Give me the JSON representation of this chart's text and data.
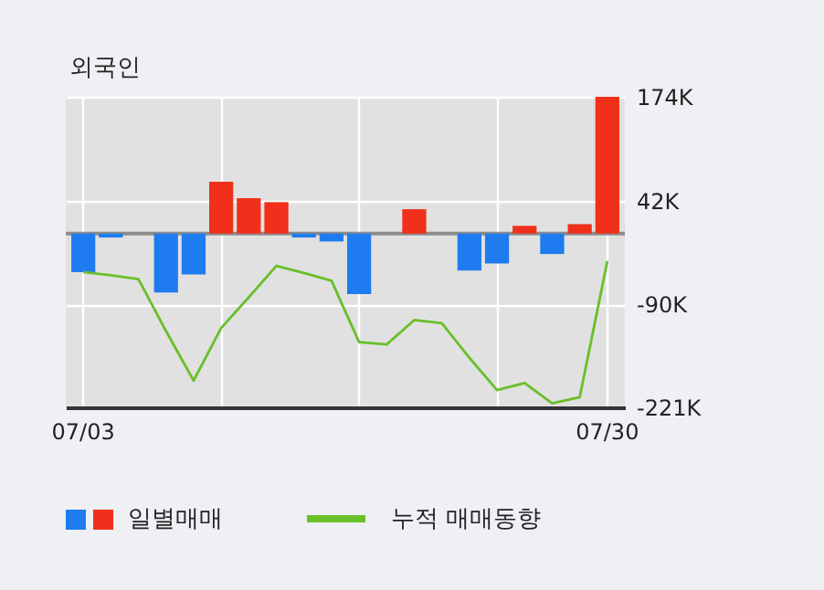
{
  "chart_data": {
    "type": "bar",
    "title": "외국인",
    "categories": [
      "07/03",
      null,
      null,
      null,
      null,
      null,
      null,
      null,
      null,
      null,
      null,
      null,
      null,
      null,
      null,
      null,
      null,
      null,
      null,
      "07/30"
    ],
    "series": [
      {
        "name": "일별매매",
        "colors": [
          "#1e7cf0",
          "#1e7cf0",
          "#1e7cf0",
          "#1e7cf0",
          "#1e7cf0",
          "#f0301a",
          "#f0301a",
          "#f0301a",
          "#1e7cf0",
          "#1e7cf0",
          "#1e7cf0",
          "#1e7cf0",
          "#f0301a",
          "#1e7cf0",
          "#1e7cf0",
          "#1e7cf0",
          "#f0301a",
          "#1e7cf0",
          "#f0301a",
          "#f0301a"
        ],
        "values": [
          -49,
          -5,
          0,
          -75,
          -52,
          66,
          45,
          40,
          -5,
          -10,
          -77,
          0,
          31,
          0,
          -47,
          -38,
          10,
          -26,
          12,
          174
        ]
      },
      {
        "name": "누적 매매동향",
        "type": "line",
        "color": "#6abf2a",
        "values": [
          -49,
          -53,
          -58,
          -124,
          -187,
          -120,
          -81,
          -41,
          -50,
          -60,
          -138,
          -141,
          -110,
          -114,
          -158,
          -199,
          -190,
          -216,
          -208,
          -35
        ]
      }
    ],
    "ylim": [
      -221,
      174
    ],
    "yticks": [
      {
        "value": 174,
        "label": "174K"
      },
      {
        "value": 42,
        "label": "42K"
      },
      {
        "value": -90,
        "label": "-90K"
      },
      {
        "value": -221,
        "label": "-221K"
      }
    ],
    "ref_lines": [
      {
        "axis": "y",
        "value": 0,
        "color": "#8c8c8c"
      }
    ],
    "grid": true,
    "legend": "bottom"
  }
}
